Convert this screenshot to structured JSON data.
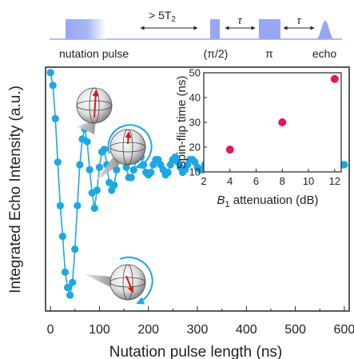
{
  "pulse_sequence": {
    "nutation_label": "nutation pulse",
    "wait_label": "> 5T",
    "wait_subscript": "2",
    "tau_label": "τ",
    "half_pi_label": "(π/2)",
    "pi_label": "π",
    "echo_label": "echo",
    "color": "#97a8f2"
  },
  "chart_data": [
    {
      "type": "scatter",
      "title": "",
      "xlabel": "Nutation pulse length (ns)",
      "ylabel": "Integrated Echo Intensity (a.u.)",
      "xlim": [
        -10,
        610
      ],
      "xticks": [
        "0",
        "100",
        "200",
        "300",
        "400",
        "500",
        "600"
      ],
      "yticks_visible": false,
      "color": "#1ba8e3",
      "x": [
        0,
        5,
        10,
        15,
        20,
        25,
        30,
        35,
        40,
        45,
        50,
        55,
        60,
        65,
        70,
        75,
        80,
        85,
        90,
        95,
        100,
        105,
        110,
        115,
        120,
        125,
        130,
        135,
        140,
        145,
        150,
        155,
        160,
        165,
        170,
        175,
        180,
        185,
        190,
        195,
        200,
        205,
        210,
        215,
        220,
        225,
        230,
        235,
        240,
        245,
        250,
        255,
        260,
        265,
        270,
        275,
        280,
        285,
        290,
        295,
        300,
        305,
        310,
        315,
        320,
        325,
        330,
        335,
        340,
        345,
        350,
        355,
        360,
        365,
        370,
        375,
        380,
        385,
        390,
        395,
        400,
        405,
        410,
        415,
        420,
        425,
        430,
        435,
        440,
        445,
        450,
        455,
        460,
        465,
        470,
        475,
        480,
        485,
        490,
        495,
        500,
        505,
        510,
        515,
        520,
        525,
        530,
        535,
        540,
        545,
        550,
        555,
        560,
        565,
        570,
        575,
        580,
        585,
        590,
        595,
        600
      ],
      "y": [
        0.96,
        0.91,
        0.78,
        0.61,
        0.44,
        0.32,
        0.18,
        0.12,
        0.09,
        0.14,
        0.27,
        0.44,
        0.6,
        0.7,
        0.74,
        0.69,
        0.58,
        0.49,
        0.43,
        0.5,
        0.59,
        0.65,
        0.66,
        0.6,
        0.53,
        0.5,
        0.52,
        0.58,
        0.63,
        0.66,
        0.64,
        0.59,
        0.55,
        0.55,
        0.58,
        0.62,
        0.64,
        0.63,
        0.6,
        0.57,
        0.56,
        0.57,
        0.6,
        0.62,
        0.62,
        0.6,
        0.58,
        0.56,
        0.57,
        0.6,
        0.62,
        0.63,
        0.61,
        0.59,
        0.57,
        0.58,
        0.6,
        0.62,
        0.62,
        0.61,
        0.59,
        0.58,
        0.58,
        0.6,
        0.61,
        0.62,
        0.61,
        0.6,
        0.59,
        0.59,
        0.6,
        0.61,
        0.61,
        0.6,
        0.59,
        0.59,
        0.59,
        0.6,
        0.61,
        0.61,
        0.6,
        0.59,
        0.59,
        0.6,
        0.61,
        0.61,
        0.6,
        0.59,
        0.6,
        0.6,
        0.61,
        0.61,
        0.6,
        0.6,
        0.59,
        0.6,
        0.61,
        0.61,
        0.6,
        0.6,
        0.6,
        0.6,
        0.61,
        0.61,
        0.6,
        0.6,
        0.6,
        0.6,
        0.6,
        0.61,
        0.61,
        0.6,
        0.6,
        0.6,
        0.6,
        0.6,
        0.61,
        0.6,
        0.6,
        0.6,
        0.6
      ]
    },
    {
      "type": "scatter",
      "title": "",
      "xlabel_main": "B",
      "xlabel_sub": "1",
      "xlabel_rest": " attenuation (dB)",
      "ylabel": "Spin-flip time (ns)",
      "xlim": [
        2,
        12.5
      ],
      "ylim": [
        10,
        50
      ],
      "xticks": [
        2,
        4,
        6,
        8,
        10,
        12
      ],
      "yticks": [
        10,
        20,
        30,
        40,
        50
      ],
      "color": "#e8135c",
      "x": [
        4,
        8,
        12
      ],
      "y": [
        19,
        30,
        47.5
      ]
    }
  ]
}
